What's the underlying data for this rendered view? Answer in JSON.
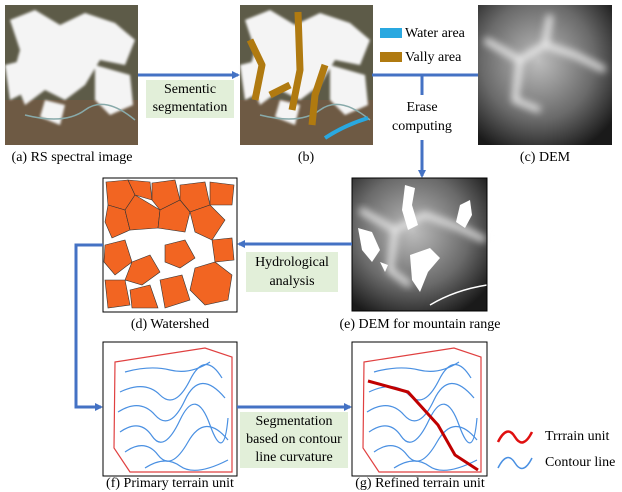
{
  "panels": [
    {
      "label": "(a) RS spectral image"
    },
    {
      "label": "(b)"
    },
    {
      "label": "(c) DEM"
    },
    {
      "label": "(d) Watershed"
    },
    {
      "label": "(e) DEM for mountain range"
    },
    {
      "label": "(f) Primary terrain unit"
    },
    {
      "label": "(g) Refined terrain unit"
    }
  ],
  "legend_b": [
    {
      "label": "Water area"
    },
    {
      "label": "Vally area"
    }
  ],
  "steps": [
    {
      "lines": [
        "Sementic",
        "segmentation"
      ]
    },
    {
      "lines": [
        "Erase",
        "computing"
      ]
    },
    {
      "lines": [
        "Hydrological",
        "analysis"
      ]
    },
    {
      "lines": [
        "Segmentation",
        "based on contour",
        "line curvature"
      ]
    }
  ],
  "legend_g": [
    {
      "label": "Trrrain unit"
    },
    {
      "label": "Contour line"
    }
  ]
}
